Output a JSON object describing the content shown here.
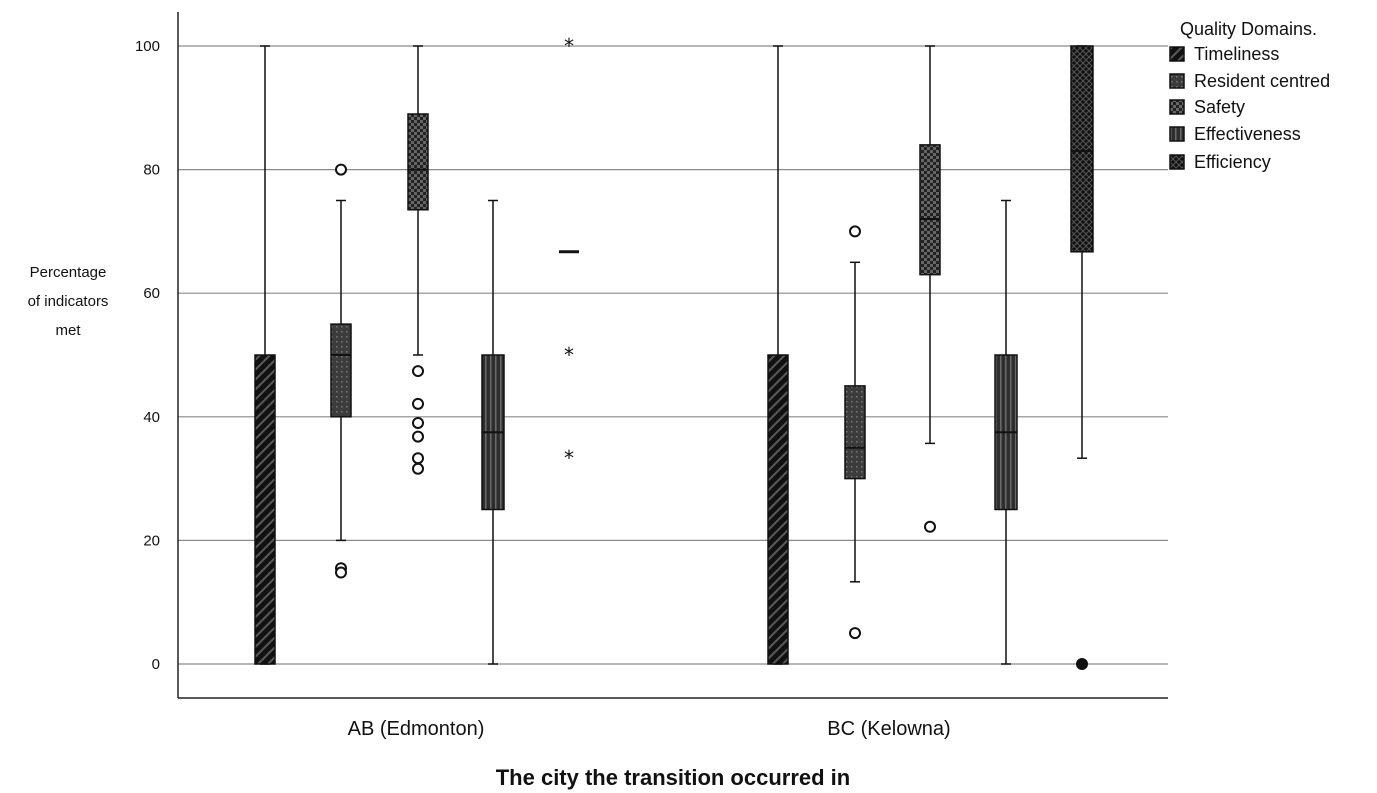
{
  "chart_data": {
    "type": "boxplot",
    "xlabel": "The city the transition occurred in",
    "ylabel_lines": [
      "Percentage",
      "of indicators",
      "met"
    ],
    "ylim": [
      0,
      100
    ],
    "yticks": [
      0,
      20,
      40,
      60,
      80,
      100
    ],
    "grid": true,
    "legend": {
      "title": "Quality Domains.",
      "placement": "top-right"
    },
    "categories": [
      "AB (Edmonton)",
      "BC (Kelowna)"
    ],
    "series": [
      {
        "name": "Timeliness",
        "pattern": "diagonal",
        "boxes": [
          {
            "whisker_low": 0,
            "q1": 0,
            "median": 0,
            "q3": 50,
            "whisker_high": 100,
            "outliers": [],
            "extremes": [],
            "dash": null
          },
          {
            "whisker_low": 0,
            "q1": 0,
            "median": 0,
            "q3": 50,
            "whisker_high": 100,
            "outliers": [],
            "extremes": [],
            "dash": null
          }
        ]
      },
      {
        "name": "Resident centred",
        "pattern": "dots",
        "boxes": [
          {
            "whisker_low": 20,
            "q1": 40,
            "median": 50,
            "q3": 55,
            "whisker_high": 75,
            "outliers": [
              80,
              15.5,
              14.8
            ],
            "extremes": [],
            "dash": null
          },
          {
            "whisker_low": 13.3,
            "q1": 30,
            "median": 35,
            "q3": 45,
            "whisker_high": 65,
            "outliers": [
              70,
              5
            ],
            "extremes": [],
            "dash": null
          }
        ]
      },
      {
        "name": "Safety",
        "pattern": "checker",
        "boxes": [
          {
            "whisker_low": 50,
            "q1": 73.5,
            "median": 80,
            "q3": 89,
            "whisker_high": 100,
            "outliers": [
              47.4,
              42.1,
              39,
              36.8,
              33.3,
              31.6
            ],
            "extremes": [],
            "dash": null
          },
          {
            "whisker_low": 35.7,
            "q1": 63,
            "median": 72,
            "q3": 84,
            "whisker_high": 100,
            "outliers": [
              22.2
            ],
            "extremes": [],
            "dash": null
          }
        ]
      },
      {
        "name": "Effectiveness",
        "pattern": "vertical",
        "boxes": [
          {
            "whisker_low": 0,
            "q1": 25,
            "median": 37.5,
            "q3": 50,
            "whisker_high": 75,
            "outliers": [],
            "extremes": [],
            "dash": null
          },
          {
            "whisker_low": 0,
            "q1": 25,
            "median": 37.5,
            "q3": 50,
            "whisker_high": 75,
            "outliers": [],
            "extremes": [],
            "dash": null
          }
        ]
      },
      {
        "name": "Efficiency",
        "pattern": "crosshatch",
        "boxes": [
          {
            "whisker_low": null,
            "q1": null,
            "median": null,
            "q3": null,
            "whisker_high": null,
            "outliers": [],
            "extremes": [
              100,
              50,
              33.3
            ],
            "dash": 66.7
          },
          {
            "whisker_low": 33.3,
            "q1": 66.7,
            "median": 83,
            "q3": 100,
            "whisker_high": 100,
            "outliers": [
              0
            ],
            "extremes": [],
            "dash": null
          }
        ]
      }
    ]
  }
}
